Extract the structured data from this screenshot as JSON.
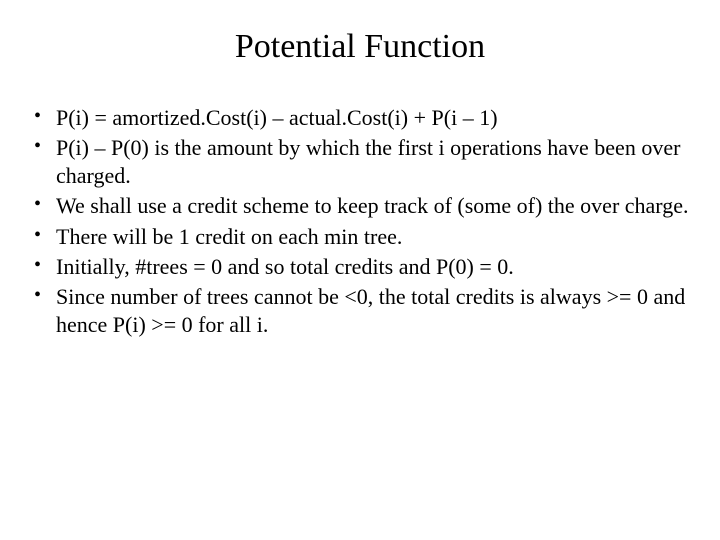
{
  "title": "Potential Function",
  "bullets": [
    "P(i) = amortized.Cost(i) – actual.Cost(i) + P(i – 1)",
    "P(i) – P(0) is the amount by which the first i operations have been over charged.",
    "We shall use a credit scheme to keep track of (some of) the over charge.",
    "There will be 1 credit on each min tree.",
    " Initially, #trees = 0 and so total credits and P(0) = 0.",
    "Since number of trees cannot be <0, the total credits is always >= 0 and hence P(i) >= 0 for all i."
  ],
  "colors": {
    "background": "#ffffff",
    "text": "#000000"
  },
  "typography": {
    "family": "Times New Roman",
    "title_fontsize": 34,
    "body_fontsize": 22
  }
}
